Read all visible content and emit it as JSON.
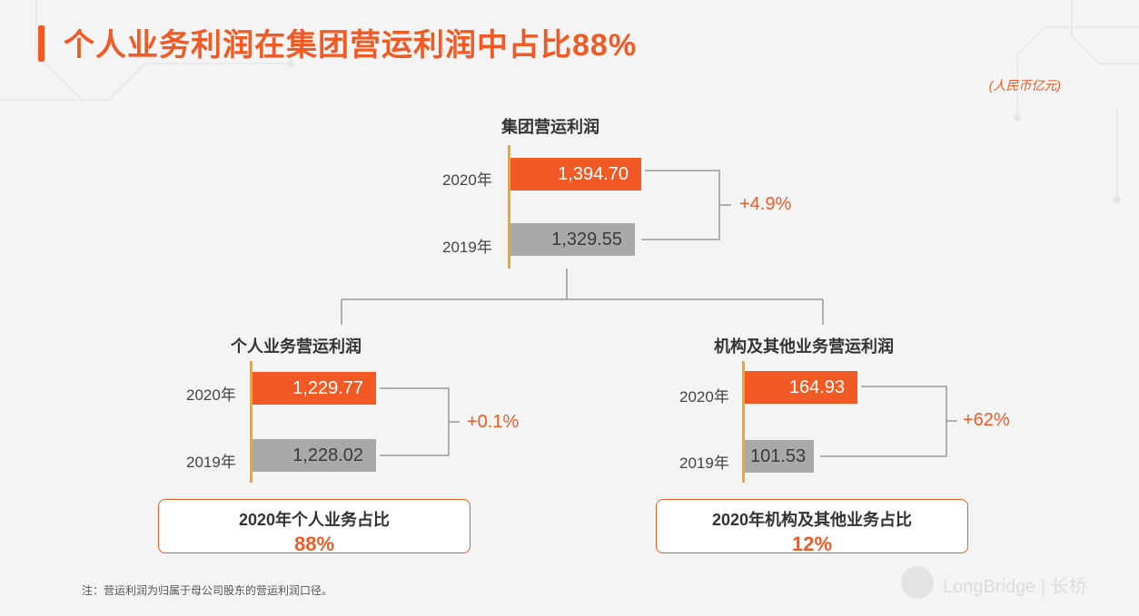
{
  "title": "个人业务利润在集团营运利润中占比88%",
  "unit": "(人民币亿元)",
  "chart_data": [
    {
      "type": "bar",
      "title": "集团营运利润",
      "categories": [
        "2020年",
        "2019年"
      ],
      "values": [
        1394.7,
        1329.55
      ],
      "labels": [
        "1,394.70",
        "1,329.55"
      ],
      "growth": "+4.9%"
    },
    {
      "type": "bar",
      "title": "个人业务营运利润",
      "categories": [
        "2020年",
        "2019年"
      ],
      "values": [
        1229.77,
        1228.02
      ],
      "labels": [
        "1,229.77",
        "1,228.02"
      ],
      "growth": "+0.1%"
    },
    {
      "type": "bar",
      "title": "机构及其他业务营运利润",
      "categories": [
        "2020年",
        "2019年"
      ],
      "values": [
        164.93,
        101.53
      ],
      "labels": [
        "164.93",
        "101.53"
      ],
      "growth": "+62%"
    }
  ],
  "ratios": [
    {
      "label": "2020年个人业务占比",
      "value": "88%"
    },
    {
      "label": "2020年机构及其他业务占比",
      "value": "12%"
    }
  ],
  "note": "注：营运利润为归属于母公司股东的营运利润口径。",
  "watermark": "LongBridge | 长桥",
  "colors": {
    "accent": "#f15a24",
    "gray_bar": "#a9a9a9",
    "axis": "#f5a623"
  }
}
